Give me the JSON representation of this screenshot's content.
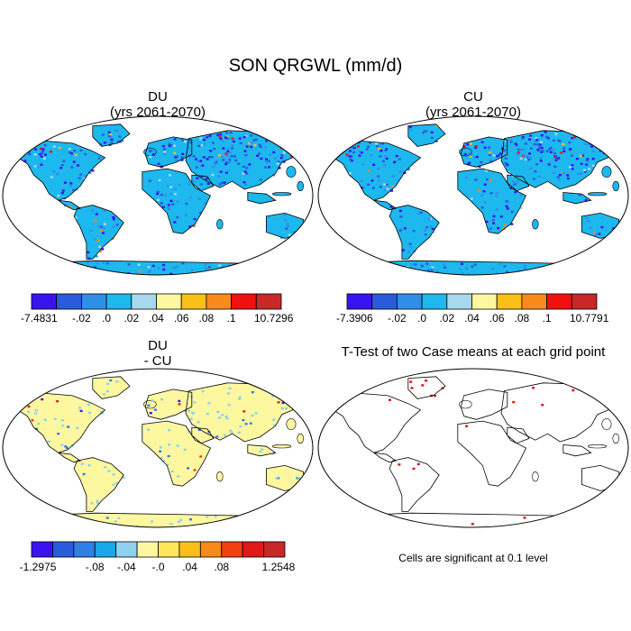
{
  "figure": {
    "title": "SON QRGWL (mm/d)",
    "panels": [
      {
        "id": "du",
        "title_line1": "DU",
        "title_line2": "(yrs 2061-2070)",
        "style": "field"
      },
      {
        "id": "cu",
        "title_line1": "CU",
        "title_line2": "(yrs 2061-2070)",
        "style": "field"
      },
      {
        "id": "diff",
        "title_line1": "DU",
        "title_line2": "- CU",
        "style": "diff"
      },
      {
        "id": "ttest",
        "title_line1": "T-Test of two Case means at each grid point",
        "title_line2": "",
        "style": "ttest"
      }
    ],
    "colorbars": [
      {
        "id": "cb-du",
        "colors": [
          "#3a14f0",
          "#2a5bdc",
          "#2f8fe8",
          "#1db8ee",
          "#a6d9ee",
          "#fdf8a0",
          "#fbbf17",
          "#f8891a",
          "#f01010",
          "#c82828"
        ],
        "labels": [
          "-7.4831",
          "-.02",
          ".0",
          ".02",
          ".04",
          ".06",
          ".08",
          ".1",
          "10.7296"
        ]
      },
      {
        "id": "cb-cu",
        "colors": [
          "#3a14f0",
          "#2a5bdc",
          "#2f8fe8",
          "#1db8ee",
          "#a6d9ee",
          "#fdf8a0",
          "#fbbf17",
          "#f8891a",
          "#f01010",
          "#c82828"
        ],
        "labels": [
          "-7.3906",
          "-.02",
          ".0",
          ".02",
          ".04",
          ".06",
          ".08",
          ".1",
          "10.7791"
        ]
      },
      {
        "id": "cb-diff",
        "colors": [
          "#3a14f0",
          "#2a5bdc",
          "#2f7fe6",
          "#1aa6ea",
          "#8fd0ef",
          "#fdf8a0",
          "#fde65a",
          "#fbbf17",
          "#f8891a",
          "#f04010",
          "#e01818",
          "#c82828"
        ],
        "labels": [
          "-1.2975",
          "-.08",
          "-.04",
          "-.0",
          ".04",
          ".08",
          "1.2548"
        ]
      }
    ],
    "note": "Cells are significant at 0.1 level",
    "field_colors": {
      "ocean": "#ffffff",
      "land_base": "#1db8ee",
      "diff_land": "#fdf8a0",
      "significant": "#e01010",
      "coastline": "#000000"
    }
  }
}
